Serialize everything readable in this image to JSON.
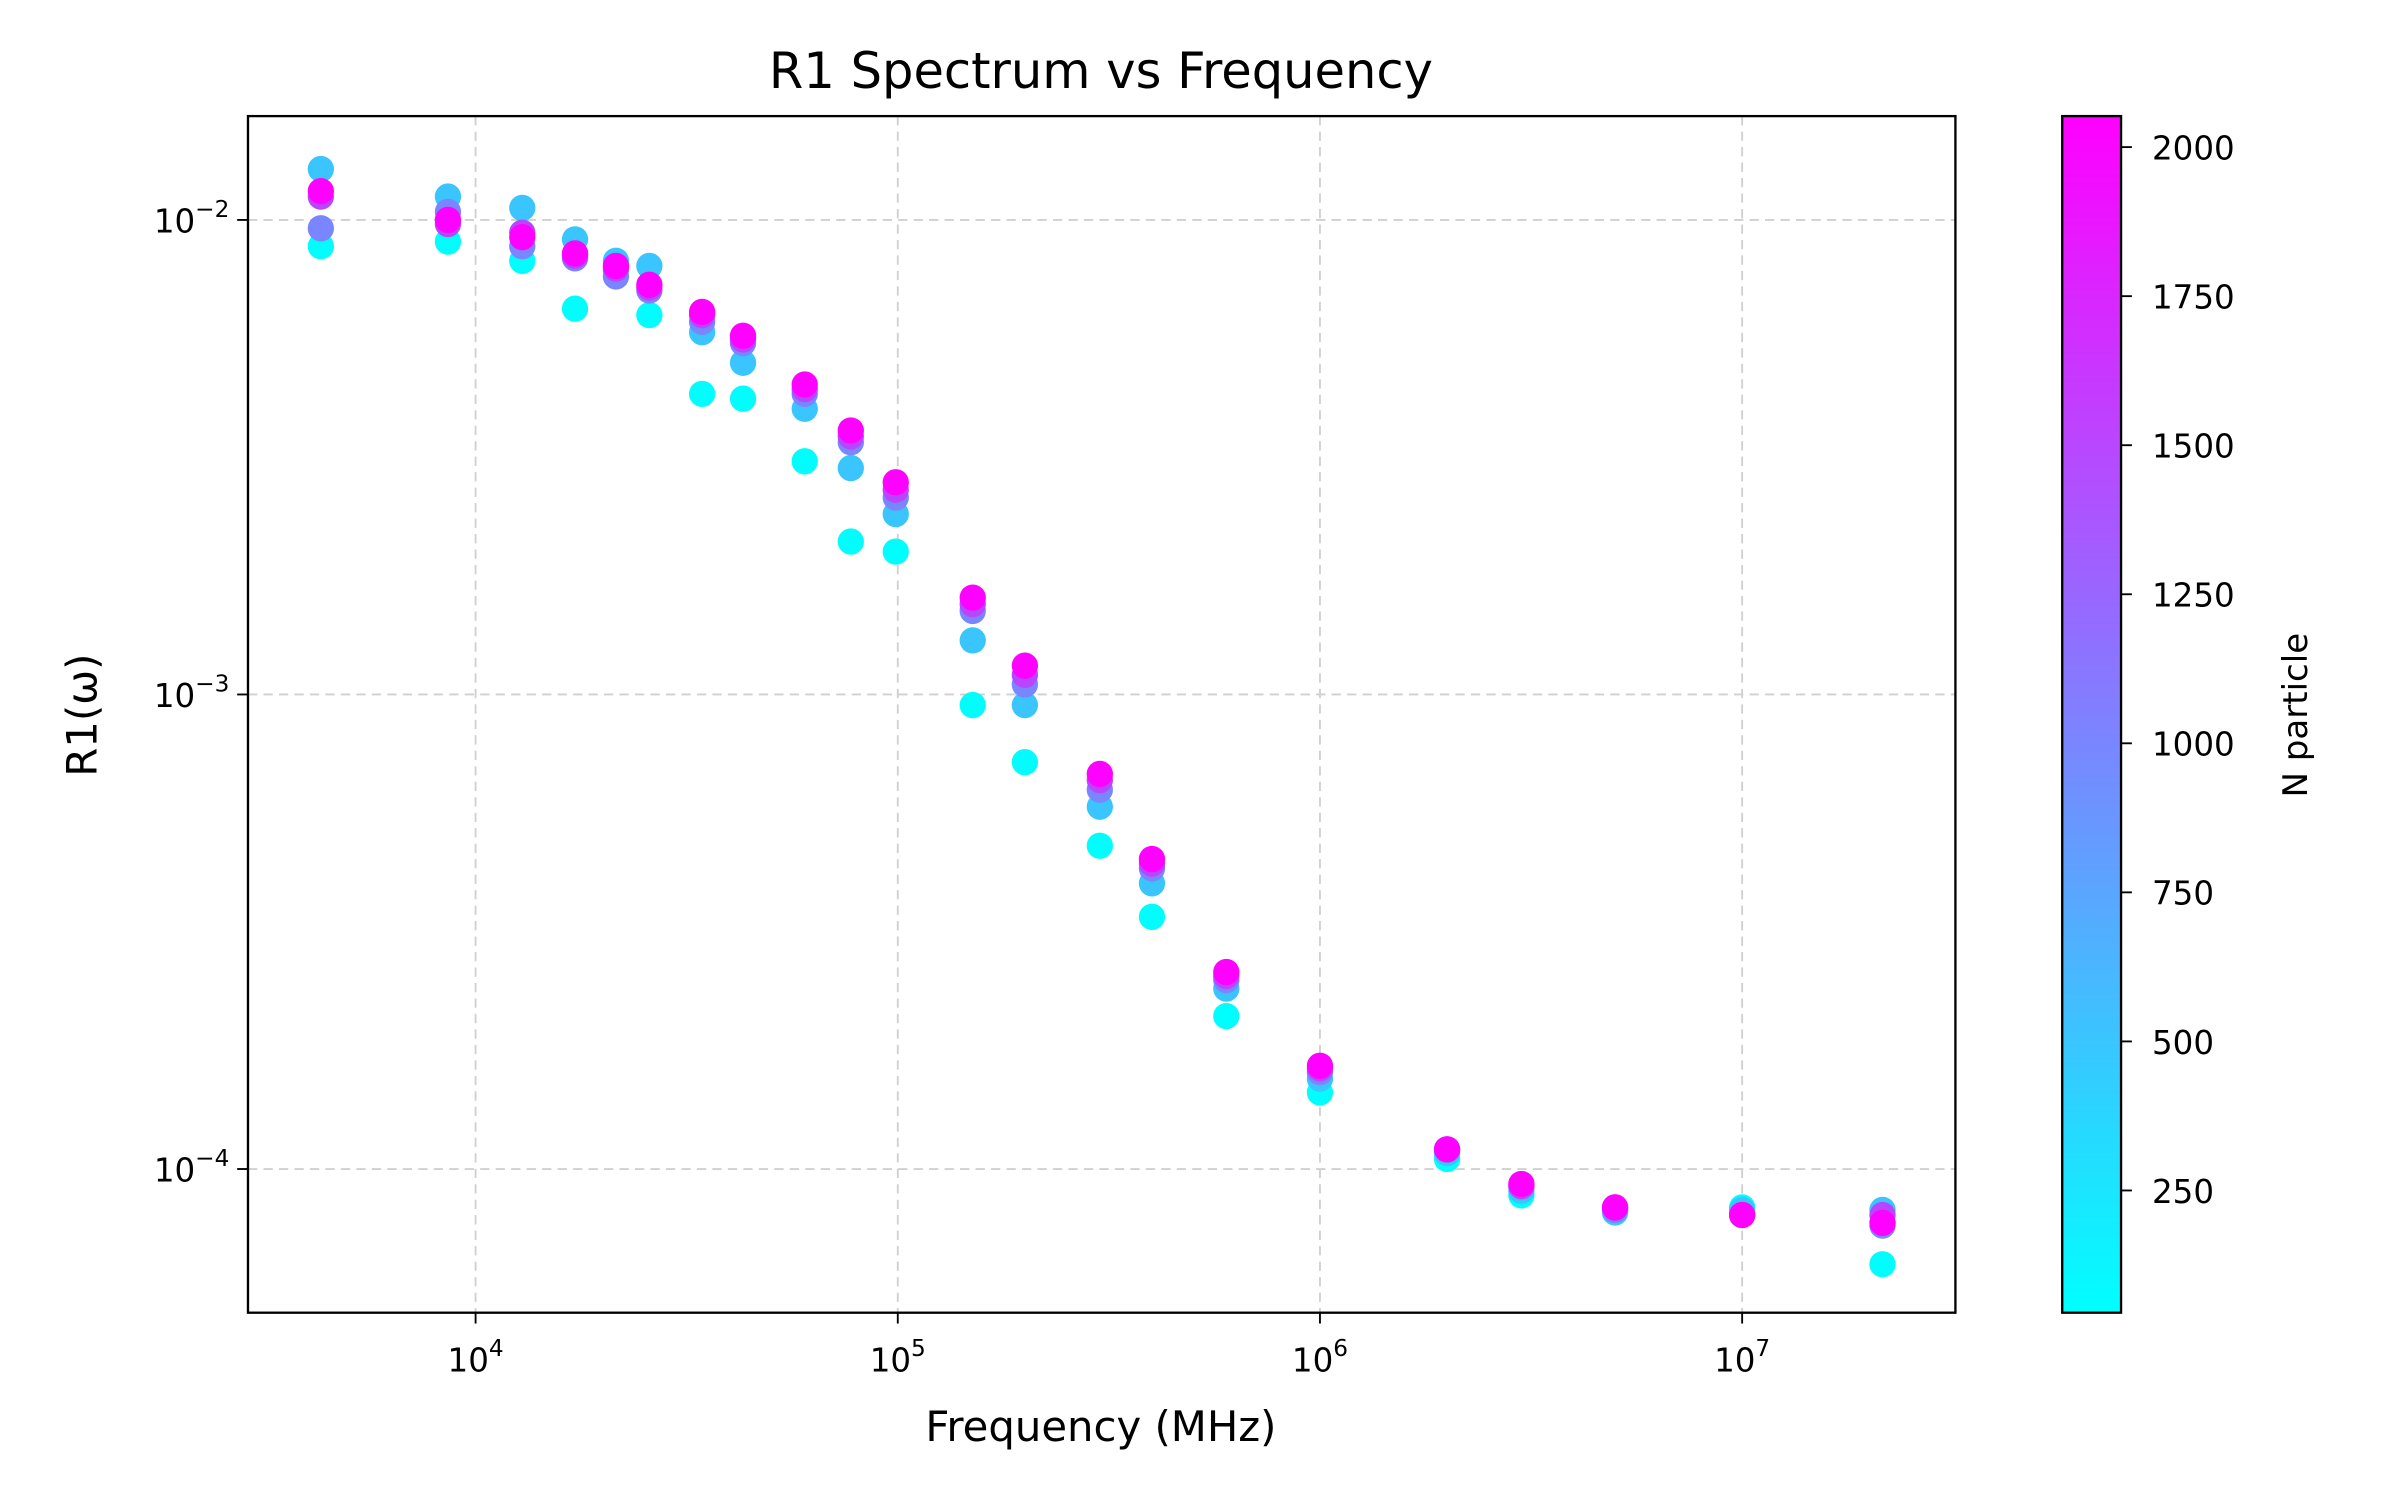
{
  "chart_data": {
    "type": "scatter",
    "title": "R1 Spectrum vs Frequency",
    "x_label": "Frequency (MHz)",
    "y_label": "R1(ω)",
    "x_scale": "log",
    "y_scale": "log",
    "grid": true,
    "xlim": [
      2890,
      32000000
    ],
    "ylim": [
      4.98e-05,
      0.01655
    ],
    "xticks": [
      {
        "value": 10000,
        "label": "10",
        "exponent": "4"
      },
      {
        "value": 100000,
        "label": "10",
        "exponent": "5"
      },
      {
        "value": 1000000,
        "label": "10",
        "exponent": "6"
      },
      {
        "value": 10000000,
        "label": "10",
        "exponent": "7"
      }
    ],
    "yticks": [
      {
        "value": 0.0001,
        "label": "10",
        "exponent": "−4"
      },
      {
        "value": 0.001,
        "label": "10",
        "exponent": "−3"
      },
      {
        "value": 0.01,
        "label": "10",
        "exponent": "−2"
      }
    ],
    "x": [
      4300,
      8600,
      12900,
      17200,
      21500,
      25800,
      34400,
      43000,
      60200,
      77400,
      98900,
      150500,
      200000,
      301000,
      400000,
      600000,
      1000000,
      2000000,
      3000000,
      5000000,
      10000000,
      21500000
    ],
    "colorbar": {
      "label": "N particle",
      "colormap": "cool",
      "lim": [
        45,
        2052
      ],
      "ticks": [
        250,
        500,
        750,
        1000,
        1250,
        1500,
        1750,
        2000
      ]
    },
    "series": [
      {
        "n_particle": 50,
        "values": [
          0.0088,
          0.009,
          0.0082,
          0.0065,
          0.0078,
          0.0063,
          0.0043,
          0.0042,
          0.0031,
          0.0021,
          0.002,
          0.00095,
          0.00072,
          0.00048,
          0.00034,
          0.00021,
          0.000145,
          0.000105,
          8.8e-05,
          8.2e-05,
          8.3e-05,
          6.3e-05
        ]
      },
      {
        "n_particle": 500,
        "values": [
          0.0128,
          0.0112,
          0.0106,
          0.0091,
          0.0082,
          0.008,
          0.0058,
          0.005,
          0.004,
          0.003,
          0.0024,
          0.0013,
          0.00095,
          0.00058,
          0.0004,
          0.00024,
          0.000155,
          0.000108,
          9e-05,
          8.1e-05,
          8.2e-05,
          8.2e-05
        ]
      },
      {
        "n_particle": 1000,
        "values": [
          0.0096,
          0.0104,
          0.0088,
          0.0083,
          0.0076,
          0.0071,
          0.0061,
          0.0055,
          0.0043,
          0.0034,
          0.0026,
          0.0015,
          0.00105,
          0.00063,
          0.00043,
          0.00025,
          0.00016,
          0.00011,
          9.2e-05,
          8.2e-05,
          8e-05,
          7.6e-05
        ]
      },
      {
        "n_particle": 1500,
        "values": [
          0.0112,
          0.0098,
          0.0094,
          0.0084,
          0.0079,
          0.0072,
          0.0063,
          0.0056,
          0.0044,
          0.0035,
          0.0027,
          0.00155,
          0.0011,
          0.00066,
          0.00044,
          0.000255,
          0.000163,
          0.00011,
          9.2e-05,
          8.3e-05,
          8e-05,
          8e-05
        ]
      },
      {
        "n_particle": 2048,
        "values": [
          0.0115,
          0.01,
          0.0092,
          0.0085,
          0.008,
          0.0073,
          0.0064,
          0.0057,
          0.0045,
          0.0036,
          0.0028,
          0.0016,
          0.00115,
          0.00068,
          0.00045,
          0.00026,
          0.000165,
          0.00011,
          9.3e-05,
          8.3e-05,
          8e-05,
          7.7e-05
        ]
      }
    ]
  }
}
